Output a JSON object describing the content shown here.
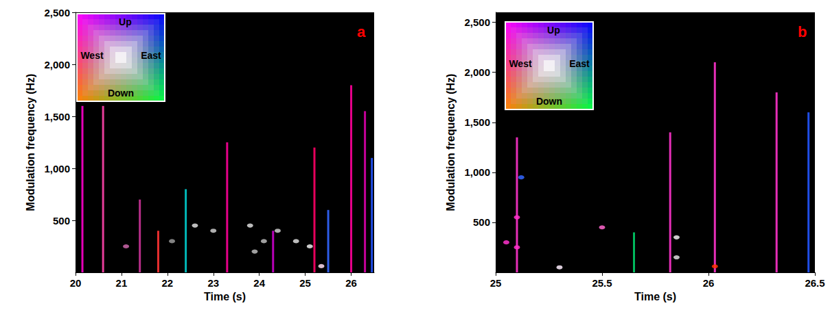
{
  "chart_data": [
    {
      "type": "spectrogram",
      "title": "a",
      "xlabel": "Time (s)",
      "ylabel": "Modulation frequency (Hz)",
      "xlim": [
        20,
        26.5
      ],
      "xticks": [
        20,
        21,
        22,
        23,
        24,
        25,
        26
      ],
      "ylim": [
        0,
        2500
      ],
      "yticks": [
        500,
        1000,
        1500,
        2000,
        2500
      ],
      "color_key": {
        "up": "Up",
        "west": "West",
        "east": "East",
        "down": "Down"
      },
      "streaks": {
        "x": [
          20.15,
          20.6,
          21.4,
          21.8,
          22.4,
          23.3,
          24.3,
          25.2,
          25.5,
          26.0,
          26.3,
          26.45
        ],
        "y_low": [
          0,
          0,
          0,
          0,
          0,
          0,
          0,
          0,
          0,
          0,
          0,
          0
        ],
        "y_high": [
          1600,
          1600,
          700,
          400,
          800,
          1250,
          400,
          1200,
          600,
          1800,
          1550,
          1100
        ],
        "colors": [
          "#ff00cc",
          "#ff44aa",
          "#cc3399",
          "#ff3333",
          "#00cccc",
          "#ff0099",
          "#cc00cc",
          "#ff0066",
          "#3366ff",
          "#ff0099",
          "#dd00aa",
          "#2255ff"
        ]
      },
      "spots": {
        "x": [
          22.6,
          23.0,
          23.8,
          24.1,
          24.4,
          24.8,
          25.1,
          23.9,
          25.35,
          21.1,
          22.1
        ],
        "y": [
          450,
          400,
          450,
          300,
          400,
          300,
          250,
          200,
          60,
          250,
          300
        ],
        "colors": [
          "#dddddd",
          "#cccccc",
          "#dddddd",
          "#bbbbbb",
          "#cccccc",
          "#dddddd",
          "#eeeeee",
          "#bbbbbb",
          "#ffddee",
          "#cc66aa",
          "#999999"
        ]
      }
    },
    {
      "type": "spectrogram",
      "title": "b",
      "xlabel": "Time (s)",
      "ylabel": "Modulation frequency (Hz)",
      "xlim": [
        25,
        26.5
      ],
      "xticks": [
        25,
        25.5,
        26,
        26.5
      ],
      "ylim": [
        0,
        2600
      ],
      "yticks": [
        500,
        1000,
        1500,
        2000,
        2500
      ],
      "color_key": {
        "up": "Up",
        "west": "West",
        "east": "East",
        "down": "Down"
      },
      "streaks": {
        "x": [
          25.1,
          25.65,
          25.82,
          26.03,
          26.32,
          26.47
        ],
        "y_low": [
          0,
          0,
          0,
          0,
          0,
          0
        ],
        "y_high": [
          1350,
          400,
          1400,
          2100,
          1800,
          1600
        ],
        "colors": [
          "#ff33cc",
          "#00cc66",
          "#ff33cc",
          "#ff33cc",
          "#ff33cc",
          "#2255ff"
        ]
      },
      "spots": {
        "x": [
          25.1,
          25.1,
          25.12,
          25.5,
          25.85,
          25.85,
          25.3,
          25.05,
          26.03
        ],
        "y": [
          550,
          250,
          950,
          450,
          350,
          150,
          50,
          300,
          60
        ],
        "colors": [
          "#ff33cc",
          "#ff33cc",
          "#3366ff",
          "#ff66cc",
          "#eeeeee",
          "#dddddd",
          "#ffeeff",
          "#ff33cc",
          "#ff3300"
        ]
      }
    }
  ]
}
